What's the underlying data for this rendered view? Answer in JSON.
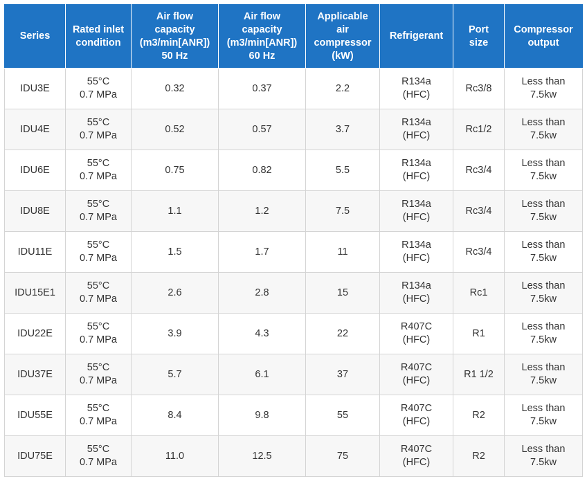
{
  "headers": [
    [
      "Series"
    ],
    [
      "Rated inlet",
      "condition"
    ],
    [
      "Air flow",
      "capacity",
      "(m3/min[ANR])",
      "50 Hz"
    ],
    [
      "Air flow",
      "capacity",
      "(m3/min[ANR])",
      "60 Hz"
    ],
    [
      "Applicable",
      "air",
      "compressor",
      "(kW)"
    ],
    [
      "Refrigerant"
    ],
    [
      "Port",
      "size"
    ],
    [
      "Compressor",
      "output"
    ]
  ],
  "rows": [
    {
      "series": "IDU3E",
      "condition": [
        "55°C",
        "0.7 MPa"
      ],
      "flow50": "0.32",
      "flow60": "0.37",
      "kw": "2.2",
      "refrigerant": [
        "R134a",
        "(HFC)"
      ],
      "port": "Rc3/8",
      "output": [
        "Less than",
        "7.5kw"
      ]
    },
    {
      "series": "IDU4E",
      "condition": [
        "55°C",
        "0.7 MPa"
      ],
      "flow50": "0.52",
      "flow60": "0.57",
      "kw": "3.7",
      "refrigerant": [
        "R134a",
        "(HFC)"
      ],
      "port": "Rc1/2",
      "output": [
        "Less than",
        "7.5kw"
      ]
    },
    {
      "series": "IDU6E",
      "condition": [
        "55°C",
        "0.7 MPa"
      ],
      "flow50": "0.75",
      "flow60": "0.82",
      "kw": "5.5",
      "refrigerant": [
        "R134a",
        "(HFC)"
      ],
      "port": "Rc3/4",
      "output": [
        "Less than",
        "7.5kw"
      ]
    },
    {
      "series": "IDU8E",
      "condition": [
        "55°C",
        "0.7 MPa"
      ],
      "flow50": "1.1",
      "flow60": "1.2",
      "kw": "7.5",
      "refrigerant": [
        "R134a",
        "(HFC)"
      ],
      "port": "Rc3/4",
      "output": [
        "Less than",
        "7.5kw"
      ]
    },
    {
      "series": "IDU11E",
      "condition": [
        "55°C",
        "0.7 MPa"
      ],
      "flow50": "1.5",
      "flow60": "1.7",
      "kw": "11",
      "refrigerant": [
        "R134a",
        "(HFC)"
      ],
      "port": "Rc3/4",
      "output": [
        "Less than",
        "7.5kw"
      ]
    },
    {
      "series": "IDU15E1",
      "condition": [
        "55°C",
        "0.7 MPa"
      ],
      "flow50": "2.6",
      "flow60": "2.8",
      "kw": "15",
      "refrigerant": [
        "R134a",
        "(HFC)"
      ],
      "port": "Rc1",
      "output": [
        "Less than",
        "7.5kw"
      ]
    },
    {
      "series": "IDU22E",
      "condition": [
        "55°C",
        "0.7 MPa"
      ],
      "flow50": "3.9",
      "flow60": "4.3",
      "kw": "22",
      "refrigerant": [
        "R407C",
        "(HFC)"
      ],
      "port": "R1",
      "output": [
        "Less than",
        "7.5kw"
      ]
    },
    {
      "series": "IDU37E",
      "condition": [
        "55°C",
        "0.7 MPa"
      ],
      "flow50": "5.7",
      "flow60": "6.1",
      "kw": "37",
      "refrigerant": [
        "R407C",
        "(HFC)"
      ],
      "port": "R1 1/2",
      "output": [
        "Less than",
        "7.5kw"
      ]
    },
    {
      "series": "IDU55E",
      "condition": [
        "55°C",
        "0.7 MPa"
      ],
      "flow50": "8.4",
      "flow60": "9.8",
      "kw": "55",
      "refrigerant": [
        "R407C",
        "(HFC)"
      ],
      "port": "R2",
      "output": [
        "Less than",
        "7.5kw"
      ]
    },
    {
      "series": "IDU75E",
      "condition": [
        "55°C",
        "0.7 MPa"
      ],
      "flow50": "11.0",
      "flow60": "12.5",
      "kw": "75",
      "refrigerant": [
        "R407C",
        "(HFC)"
      ],
      "port": "R2",
      "output": [
        "Less than",
        "7.5kw"
      ]
    }
  ]
}
